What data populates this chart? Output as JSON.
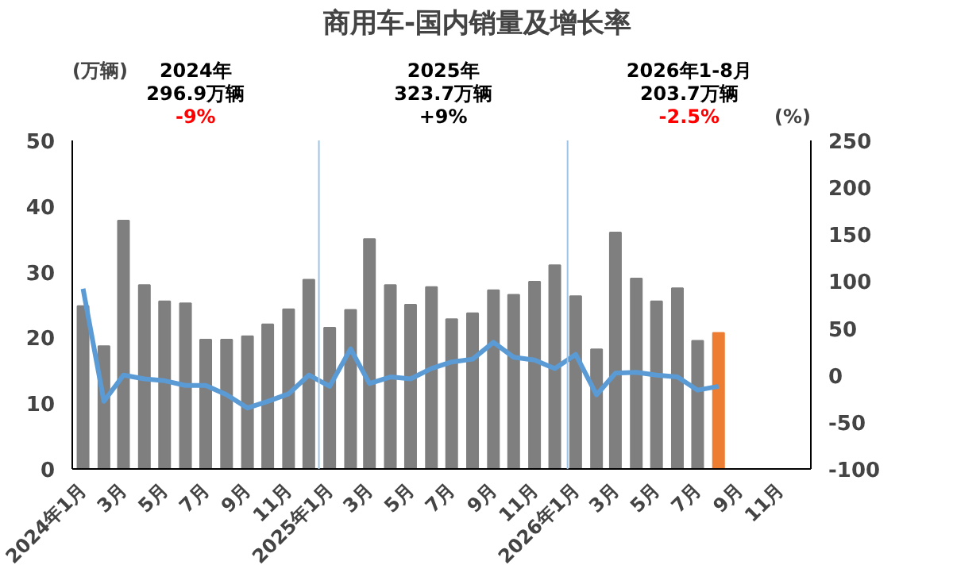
{
  "chart_data": {
    "type": "bar",
    "title": "商用车-国内销量及增长率",
    "ylabel": "(万辆)",
    "y2label": "(%)",
    "x": [
      "2024-01",
      "2024-02",
      "2024-03",
      "2024-04",
      "2024-05",
      "2024-06",
      "2024-07",
      "2024-08",
      "2024-09",
      "2024-10",
      "2024-11",
      "2024-12",
      "2025-01",
      "2025-02",
      "2025-03",
      "2025-04",
      "2025-05",
      "2025-06",
      "2025-07",
      "2025-08",
      "2025-09",
      "2025-10",
      "2025-11",
      "2025-12",
      "2026-01",
      "2026-02",
      "2026-03",
      "2026-04",
      "2026-05",
      "2026-06",
      "2026-07",
      "2026-08"
    ],
    "series": [
      {
        "colors": [
          "#7f7f7f",
          "#7f7f7f",
          "#7f7f7f",
          "#7f7f7f",
          "#7f7f7f",
          "#7f7f7f",
          "#7f7f7f",
          "#7f7f7f",
          "#7f7f7f",
          "#7f7f7f",
          "#7f7f7f",
          "#7f7f7f",
          "#7f7f7f",
          "#7f7f7f",
          "#7f7f7f",
          "#7f7f7f",
          "#7f7f7f",
          "#7f7f7f",
          "#7f7f7f",
          "#7f7f7f",
          "#7f7f7f",
          "#7f7f7f",
          "#7f7f7f",
          "#7f7f7f",
          "#7f7f7f",
          "#7f7f7f",
          "#7f7f7f",
          "#7f7f7f",
          "#7f7f7f",
          "#7f7f7f",
          "#7f7f7f",
          "#ed7d31"
        ],
        "values": [
          24.8,
          18.7,
          37.8,
          28,
          25.5,
          25.2,
          19.7,
          19.7,
          20.2,
          22,
          24.3,
          28.8,
          21.5,
          24.2,
          35,
          28,
          25,
          27.7,
          22.8,
          23.7,
          27.2,
          26.5,
          28.5,
          31,
          26.3,
          18.2,
          36,
          29,
          25.5,
          27.5,
          19.5,
          20.7
        ]
      },
      {
        "type": "line",
        "axis": "y2",
        "color": "#5b9bd5",
        "values": [
          92,
          -28,
          0,
          -4,
          -6,
          -11,
          -11,
          -21,
          -35,
          -28,
          -20,
          0,
          -12,
          28,
          -9,
          -2,
          -4,
          7,
          14,
          17,
          35,
          19,
          16,
          7,
          22,
          -21,
          2,
          3,
          0,
          -2,
          -16,
          -12
        ]
      }
    ],
    "xlim": [
      "2023-12-16",
      "2026-12-16"
    ],
    "xticks": [
      {
        "value": "2024-01",
        "label": "2024年1月"
      },
      {
        "value": "2024-03",
        "label": "3月"
      },
      {
        "value": "2024-05",
        "label": "5月"
      },
      {
        "value": "2024-07",
        "label": "7月"
      },
      {
        "value": "2024-09",
        "label": "9月"
      },
      {
        "value": "2024-11",
        "label": "11月"
      },
      {
        "value": "2025-01",
        "label": "2025年1月"
      },
      {
        "value": "2025-03",
        "label": "3月"
      },
      {
        "value": "2025-05",
        "label": "5月"
      },
      {
        "value": "2025-07",
        "label": "7月"
      },
      {
        "value": "2025-09",
        "label": "9月"
      },
      {
        "value": "2025-11",
        "label": "11月"
      },
      {
        "value": "2026-01",
        "label": "2026年1月"
      },
      {
        "value": "2026-03",
        "label": "3月"
      },
      {
        "value": "2026-05",
        "label": "5月"
      },
      {
        "value": "2026-07",
        "label": "7月"
      },
      {
        "value": "2026-09",
        "label": "9月"
      },
      {
        "value": "2026-11",
        "label": "11月"
      }
    ],
    "ylim": [
      0,
      50
    ],
    "yticks": [
      0,
      10,
      20,
      30,
      40,
      50
    ],
    "y2lim": [
      -100,
      250
    ],
    "y2ticks": [
      -100,
      -50,
      0,
      50,
      100,
      150,
      200,
      250
    ],
    "ref_lines": [
      {
        "axis": "x",
        "value": "2024-12-16",
        "color": "#9dc3e6"
      },
      {
        "axis": "x",
        "value": "2025-12-20",
        "color": "#9dc3e6"
      }
    ],
    "annotations": [
      "2024年",
      "296.9万辆",
      "-9%",
      "2025年",
      "323.7万辆",
      "+9%",
      "2026年1-8月",
      "203.7万辆",
      "-2.5%"
    ],
    "grid": false
  }
}
